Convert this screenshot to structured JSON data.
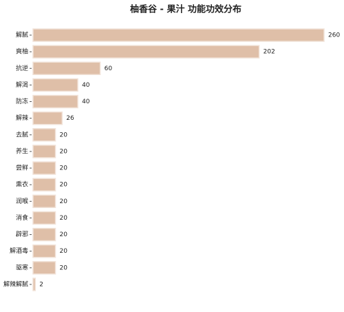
{
  "chart_data": {
    "type": "barh",
    "title": "柚香谷 - 果汁 功能功效分布",
    "categories": [
      "解腻",
      "爽柚",
      "抗逆",
      "解渴",
      "防冻",
      "解辣",
      "去腻",
      "养生",
      "尝鲜",
      "熏衣",
      "润喉",
      "消食",
      "辟邪",
      "解酒毒",
      "驱寒",
      "解辣解腻"
    ],
    "values": [
      260,
      202,
      60,
      40,
      40,
      26,
      20,
      20,
      20,
      20,
      20,
      20,
      20,
      20,
      20,
      2
    ],
    "color": "#dfbfa8",
    "xlim": [
      0,
      260
    ]
  }
}
